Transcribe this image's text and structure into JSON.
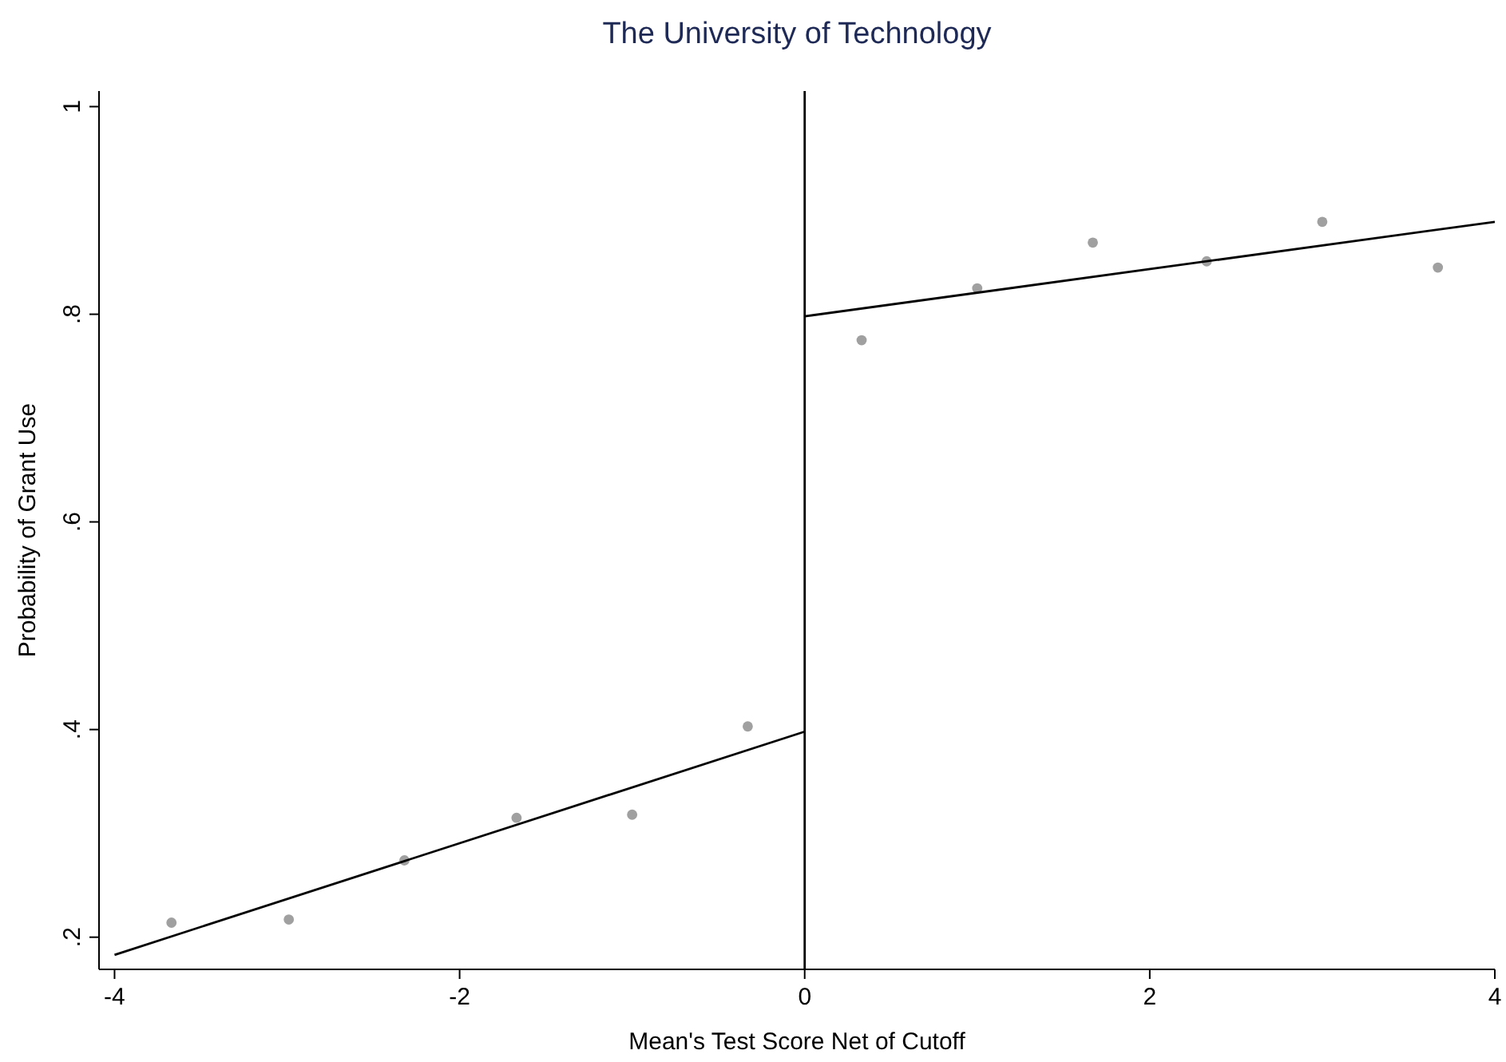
{
  "chart_data": {
    "type": "scatter",
    "title": "The University of Technology",
    "xlabel": "Mean's Test Score Net of Cutoff",
    "ylabel": "Probability of Grant Use",
    "xlim": [
      -4.09,
      4
    ],
    "xticks": [
      -4,
      -2,
      0,
      2,
      4
    ],
    "ylim": [
      0.169,
      1.015
    ],
    "yticks": [
      {
        "value": 0.2,
        "label": ".2"
      },
      {
        "value": 0.4,
        "label": ".4"
      },
      {
        "value": 0.6,
        "label": ".6"
      },
      {
        "value": 0.8,
        "label": ".8"
      },
      {
        "value": 1,
        "label": "1"
      }
    ],
    "grid": false,
    "marker": "circle",
    "ref_lines": [
      {
        "axis": "x",
        "value": 0,
        "color": "#000000"
      }
    ],
    "series": [
      {
        "color": "#a0a0a0",
        "x": [
          -3.67,
          -2.99,
          -2.32,
          -1.67,
          -1.0,
          -0.33,
          0.33,
          1.0,
          1.67,
          2.33,
          3.0,
          3.67
        ],
        "values": [
          0.214,
          0.217,
          0.274,
          0.315,
          0.318,
          0.403,
          0.775,
          0.825,
          0.869,
          0.851,
          0.889,
          0.845
        ]
      },
      {
        "type": "line",
        "color": "#000000",
        "line_style": "solid",
        "marker": "none",
        "x": [
          -4,
          0
        ],
        "values": [
          0.183,
          0.398
        ]
      },
      {
        "type": "line",
        "color": "#000000",
        "line_style": "solid",
        "marker": "none",
        "x": [
          0,
          4
        ],
        "values": [
          0.798,
          0.889
        ]
      }
    ]
  }
}
